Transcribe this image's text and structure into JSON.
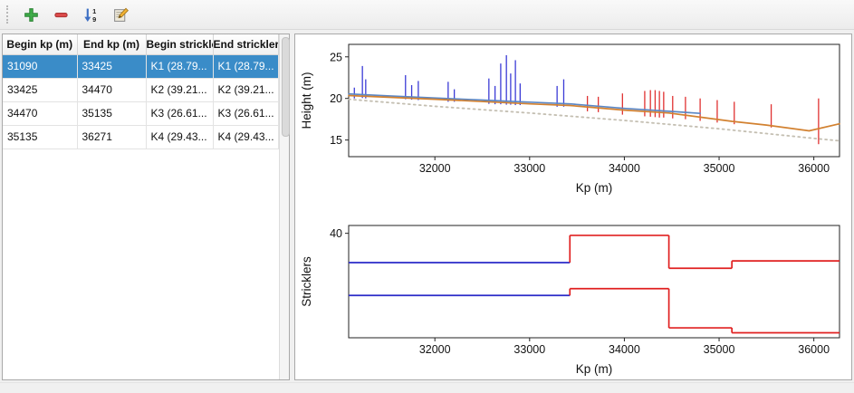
{
  "toolbar": {
    "buttons": [
      {
        "name": "add",
        "icon": "plus-icon"
      },
      {
        "name": "remove",
        "icon": "minus-icon"
      },
      {
        "name": "sort",
        "icon": "sort-numeric-icon"
      },
      {
        "name": "edit",
        "icon": "edit-icon"
      }
    ]
  },
  "table": {
    "columns": [
      "Begin kp (m)",
      "End kp (m)",
      "Begin strickler",
      "End strickler"
    ],
    "rows": [
      {
        "begin_kp": "31090",
        "end_kp": "33425",
        "begin_strickler": "K1 (28.79...",
        "end_strickler": "K1 (28.79...",
        "selected": true
      },
      {
        "begin_kp": "33425",
        "end_kp": "34470",
        "begin_strickler": "K2 (39.21...",
        "end_strickler": "K2 (39.21...",
        "selected": false
      },
      {
        "begin_kp": "34470",
        "end_kp": "35135",
        "begin_strickler": "K3 (26.61...",
        "end_strickler": "K3 (26.61...",
        "selected": false
      },
      {
        "begin_kp": "35135",
        "end_kp": "36271",
        "begin_strickler": "K4 (29.43...",
        "end_strickler": "K4 (29.43...",
        "selected": false
      }
    ]
  },
  "colors": {
    "selection": "#3a8cc8",
    "spike_blue": "#3b3bd6",
    "spike_red": "#e03131",
    "step_blue": "#2a2ac8",
    "step_red": "#e02020",
    "water_line": "#5b87c5",
    "bed_line": "#d28130",
    "reference_dotted": "#c4bfb2"
  },
  "chart_data": [
    {
      "type": "line",
      "title": "",
      "xlabel": "Kp (m)",
      "ylabel": "Height (m)",
      "xlim": [
        31090,
        36271
      ],
      "ylim": [
        13,
        26.5
      ],
      "xticks": [
        32000,
        33000,
        34000,
        35000,
        36000
      ],
      "yticks": [
        15,
        20,
        25
      ],
      "grid": false,
      "series": [
        {
          "name": "reference-dotted-line",
          "color": "#c4bfb2",
          "dash": "2,4",
          "width": 1.8,
          "points": [
            [
              31090,
              19.9
            ],
            [
              32000,
              19.05
            ],
            [
              33000,
              18.25
            ],
            [
              34000,
              17.35
            ],
            [
              35000,
              16.35
            ],
            [
              36000,
              15.2
            ],
            [
              36271,
              14.9
            ]
          ]
        },
        {
          "name": "water-level-line",
          "color": "#5b87c5",
          "width": 1.7,
          "points": [
            [
              31090,
              20.55
            ],
            [
              31500,
              20.3
            ],
            [
              32000,
              20.05
            ],
            [
              32500,
              19.8
            ],
            [
              33000,
              19.55
            ],
            [
              33425,
              19.35
            ],
            [
              34000,
              18.8
            ],
            [
              34470,
              18.45
            ],
            [
              34800,
              18.2
            ]
          ]
        },
        {
          "name": "bed-level-line",
          "color": "#d28130",
          "width": 1.7,
          "points": [
            [
              31090,
              20.35
            ],
            [
              32000,
              19.9
            ],
            [
              33000,
              19.35
            ],
            [
              33425,
              19.15
            ],
            [
              34000,
              18.6
            ],
            [
              34470,
              18.25
            ],
            [
              35135,
              17.25
            ],
            [
              35500,
              16.8
            ],
            [
              35950,
              16.1
            ],
            [
              36271,
              16.95
            ]
          ]
        }
      ],
      "spike_groups": [
        {
          "name": "cross-sections-selected-reach",
          "color": "#3b3bd6",
          "lines": [
            [
              31150,
              20.0,
              21.3
            ],
            [
              31235,
              20.05,
              23.9
            ],
            [
              31270,
              20.0,
              22.3
            ],
            [
              31690,
              19.9,
              22.8
            ],
            [
              31755,
              19.85,
              21.6
            ],
            [
              31825,
              19.8,
              22.1
            ],
            [
              32140,
              19.6,
              22.0
            ],
            [
              32205,
              19.6,
              21.1
            ],
            [
              32570,
              19.35,
              22.4
            ],
            [
              32635,
              19.3,
              21.5
            ],
            [
              32695,
              19.3,
              24.2
            ],
            [
              32755,
              19.25,
              25.2
            ],
            [
              32800,
              19.25,
              23.0
            ],
            [
              32850,
              19.2,
              24.6
            ],
            [
              32900,
              19.2,
              21.8
            ],
            [
              33290,
              19.0,
              21.5
            ],
            [
              33360,
              19.0,
              22.3
            ]
          ]
        },
        {
          "name": "cross-sections-other-reaches",
          "color": "#e03131",
          "lines": [
            [
              33610,
              18.45,
              20.3
            ],
            [
              33725,
              18.35,
              20.2
            ],
            [
              33980,
              18.05,
              20.6
            ],
            [
              34215,
              17.85,
              20.9
            ],
            [
              34275,
              17.8,
              21.0
            ],
            [
              34325,
              17.75,
              21.0
            ],
            [
              34370,
              17.7,
              20.9
            ],
            [
              34415,
              17.7,
              20.8
            ],
            [
              34510,
              17.6,
              20.3
            ],
            [
              34645,
              17.5,
              20.2
            ],
            [
              34800,
              17.3,
              20.0
            ],
            [
              34980,
              17.1,
              19.8
            ],
            [
              35160,
              16.9,
              19.6
            ],
            [
              35550,
              16.5,
              19.3
            ],
            [
              36050,
              14.5,
              20.0
            ]
          ]
        }
      ]
    },
    {
      "type": "step",
      "title": "",
      "xlabel": "Kp (m)",
      "ylabel": "Stricklers",
      "xlim": [
        31090,
        36271
      ],
      "ylim": [
        0,
        43
      ],
      "xticks": [
        32000,
        33000,
        34000,
        35000,
        36000
      ],
      "yticks": [
        40
      ],
      "grid": false,
      "steps": [
        {
          "name": "main-channel-strickler",
          "segments": [
            {
              "x0": 31090,
              "x1": 33425,
              "y": 28.79,
              "color": "#2a2ac8"
            },
            {
              "x0": 33425,
              "x1": 34470,
              "y": 39.21,
              "color": "#e02020"
            },
            {
              "x0": 34470,
              "x1": 35135,
              "y": 26.61,
              "color": "#e02020"
            },
            {
              "x0": 35135,
              "x1": 36271,
              "y": 29.43,
              "color": "#e02020"
            }
          ]
        },
        {
          "name": "floodplain-strickler",
          "segments": [
            {
              "x0": 31090,
              "x1": 33425,
              "y": 16.2,
              "color": "#2a2ac8"
            },
            {
              "x0": 33425,
              "x1": 34470,
              "y": 18.8,
              "color": "#e02020"
            },
            {
              "x0": 34470,
              "x1": 35135,
              "y": 3.8,
              "color": "#e02020"
            },
            {
              "x0": 35135,
              "x1": 36271,
              "y": 1.9,
              "color": "#e02020"
            }
          ]
        }
      ]
    }
  ]
}
